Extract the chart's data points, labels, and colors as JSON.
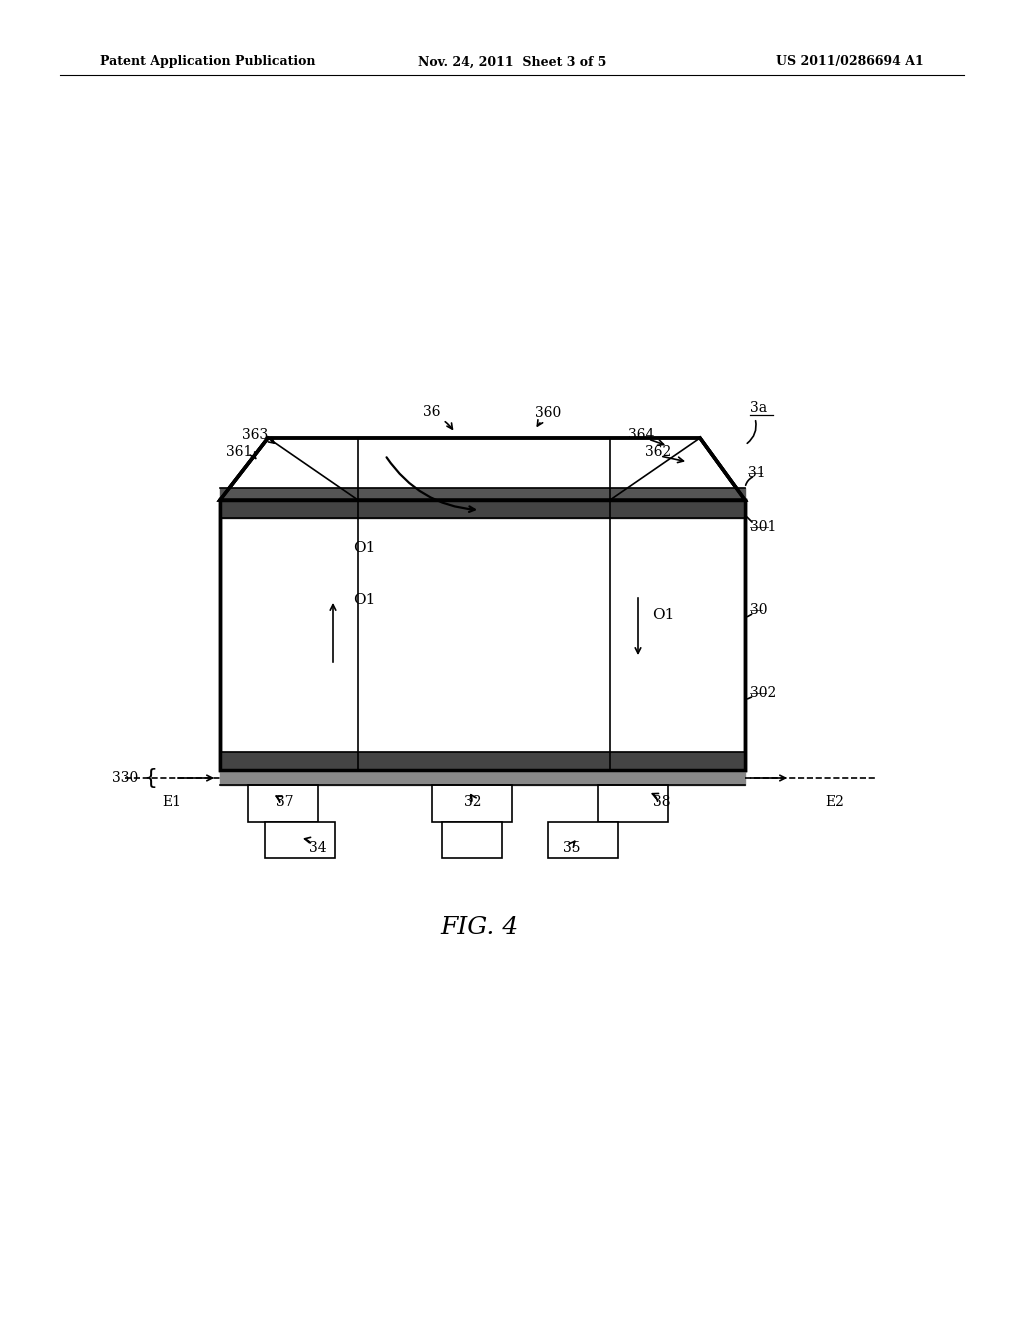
{
  "bg_color": "#ffffff",
  "line_color": "#000000",
  "header_left": "Patent Application Publication",
  "header_mid": "Nov. 24, 2011  Sheet 3 of 5",
  "header_right": "US 2011/0286694 A1",
  "fig_label": "FIG. 4",
  "label_3a": "3a",
  "label_36": "36",
  "label_360": "360",
  "label_361": "361",
  "label_362": "362",
  "label_363": "363",
  "label_364": "364",
  "label_31": "31",
  "label_301": "301",
  "label_30": "30",
  "label_302": "302",
  "label_330": "330",
  "label_E1": "E1",
  "label_E2": "E2",
  "label_37": "37",
  "label_38": "38",
  "label_32": "32",
  "label_34": "34",
  "label_35": "35",
  "label_O1": "O1"
}
